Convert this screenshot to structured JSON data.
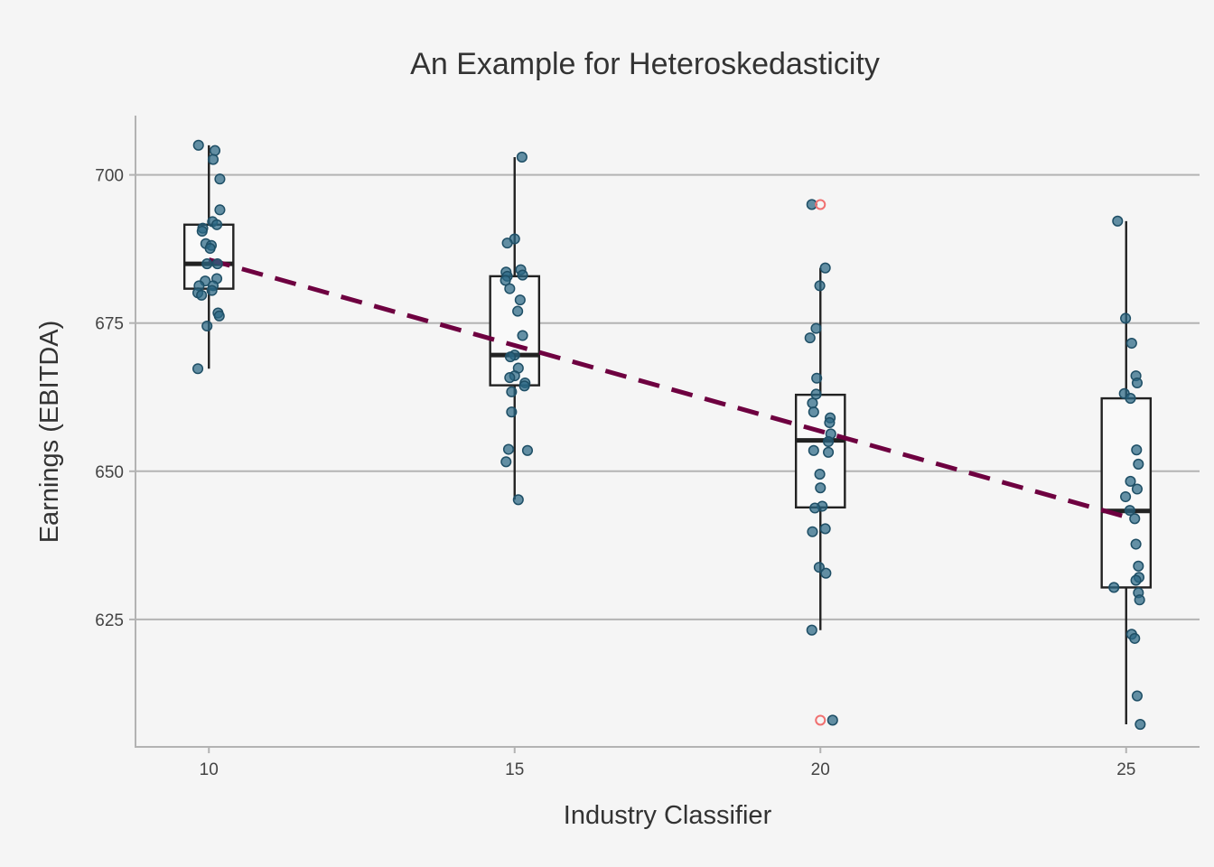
{
  "chart_data": {
    "type": "box",
    "title": "An Example for Heteroskedasticity",
    "xlabel": "Industry Classifier",
    "ylabel": "Earnings (EBITDA)",
    "xlim": [
      8.8,
      26.2
    ],
    "ylim": [
      603.5,
      710
    ],
    "xticks": [
      "10",
      "15",
      "20",
      "25"
    ],
    "yticks": [
      "625",
      "650",
      "675",
      "700"
    ],
    "grid": "horizontal major",
    "colors": {
      "points": "#2a6684",
      "outliers": "#f07070",
      "trend": "#6e0040",
      "box": "#222222",
      "background": "#f5f5f5"
    },
    "groups": [
      {
        "x": 10,
        "box": {
          "lower_whisker": 667.3,
          "q1": 680.8,
          "median": 685.0,
          "q3": 691.6,
          "upper_whisker": 705.0
        },
        "outliers": [],
        "points": [
          [
            9.83,
            705.0
          ],
          [
            10.1,
            704.1
          ],
          [
            10.07,
            702.6
          ],
          [
            10.18,
            699.3
          ],
          [
            10.18,
            694.1
          ],
          [
            10.06,
            692.1
          ],
          [
            10.13,
            691.6
          ],
          [
            9.9,
            691.0
          ],
          [
            9.89,
            690.5
          ],
          [
            9.95,
            688.4
          ],
          [
            10.04,
            688.1
          ],
          [
            10.02,
            687.6
          ],
          [
            9.97,
            685.0
          ],
          [
            10.14,
            685.0
          ],
          [
            10.13,
            682.5
          ],
          [
            9.94,
            682.1
          ],
          [
            9.84,
            681.3
          ],
          [
            10.07,
            681.3
          ],
          [
            10.05,
            680.5
          ],
          [
            9.82,
            680.1
          ],
          [
            9.88,
            679.7
          ],
          [
            10.15,
            676.7
          ],
          [
            10.17,
            676.2
          ],
          [
            9.97,
            674.5
          ],
          [
            9.82,
            667.3
          ]
        ]
      },
      {
        "x": 15,
        "box": {
          "lower_whisker": 645.2,
          "q1": 664.5,
          "median": 669.6,
          "q3": 682.9,
          "upper_whisker": 703.0
        },
        "outliers": [],
        "points": [
          [
            15.12,
            703.0
          ],
          [
            15.0,
            689.2
          ],
          [
            14.88,
            688.5
          ],
          [
            15.1,
            684.0
          ],
          [
            14.86,
            683.6
          ],
          [
            15.13,
            683.1
          ],
          [
            14.88,
            682.9
          ],
          [
            14.85,
            682.2
          ],
          [
            14.92,
            680.8
          ],
          [
            15.09,
            678.9
          ],
          [
            15.05,
            677.0
          ],
          [
            15.13,
            672.9
          ],
          [
            15.0,
            669.6
          ],
          [
            14.93,
            669.3
          ],
          [
            15.06,
            667.4
          ],
          [
            15.0,
            666.1
          ],
          [
            14.92,
            665.8
          ],
          [
            15.17,
            664.9
          ],
          [
            15.16,
            664.4
          ],
          [
            14.95,
            663.4
          ],
          [
            14.95,
            660.0
          ],
          [
            14.9,
            653.7
          ],
          [
            15.21,
            653.5
          ],
          [
            14.86,
            651.6
          ],
          [
            15.06,
            645.2
          ]
        ]
      },
      {
        "x": 20,
        "box": {
          "lower_whisker": 623.2,
          "q1": 643.9,
          "median": 655.2,
          "q3": 662.9,
          "upper_whisker": 684.3
        },
        "outliers": [
          695.0,
          608.0
        ],
        "points": [
          [
            19.86,
            695.0
          ],
          [
            20.08,
            684.3
          ],
          [
            19.99,
            681.3
          ],
          [
            19.93,
            674.1
          ],
          [
            19.83,
            672.5
          ],
          [
            19.94,
            665.7
          ],
          [
            19.93,
            663.0
          ],
          [
            19.87,
            661.5
          ],
          [
            19.89,
            660.0
          ],
          [
            20.16,
            659.0
          ],
          [
            20.15,
            658.2
          ],
          [
            20.17,
            656.3
          ],
          [
            20.13,
            655.0
          ],
          [
            19.89,
            653.5
          ],
          [
            20.13,
            653.2
          ],
          [
            19.99,
            649.5
          ],
          [
            20.0,
            647.2
          ],
          [
            20.03,
            644.1
          ],
          [
            19.91,
            643.8
          ],
          [
            19.87,
            639.8
          ],
          [
            20.08,
            640.3
          ],
          [
            19.98,
            633.8
          ],
          [
            20.09,
            632.8
          ],
          [
            19.86,
            623.2
          ],
          [
            20.2,
            608.0
          ]
        ]
      },
      {
        "x": 25,
        "box": {
          "lower_whisker": 607.3,
          "q1": 630.4,
          "median": 643.3,
          "q3": 662.3,
          "upper_whisker": 692.2
        },
        "outliers": [],
        "points": [
          [
            24.86,
            692.2
          ],
          [
            24.99,
            675.8
          ],
          [
            25.09,
            671.6
          ],
          [
            25.16,
            666.1
          ],
          [
            25.18,
            664.9
          ],
          [
            24.97,
            663.1
          ],
          [
            25.07,
            662.3
          ],
          [
            25.17,
            653.6
          ],
          [
            25.2,
            651.2
          ],
          [
            25.07,
            648.3
          ],
          [
            25.18,
            647.0
          ],
          [
            24.99,
            645.7
          ],
          [
            25.06,
            643.4
          ],
          [
            25.14,
            642.0
          ],
          [
            25.16,
            637.7
          ],
          [
            25.2,
            634.0
          ],
          [
            25.21,
            632.1
          ],
          [
            25.16,
            631.6
          ],
          [
            24.8,
            630.4
          ],
          [
            25.2,
            629.5
          ],
          [
            25.22,
            628.3
          ],
          [
            25.09,
            622.5
          ],
          [
            25.14,
            621.8
          ],
          [
            25.18,
            612.1
          ],
          [
            25.23,
            607.3
          ]
        ]
      }
    ],
    "trend_line": {
      "style": "dashed",
      "from": [
        10,
        685.7
      ],
      "to": [
        25,
        642.3
      ]
    }
  }
}
